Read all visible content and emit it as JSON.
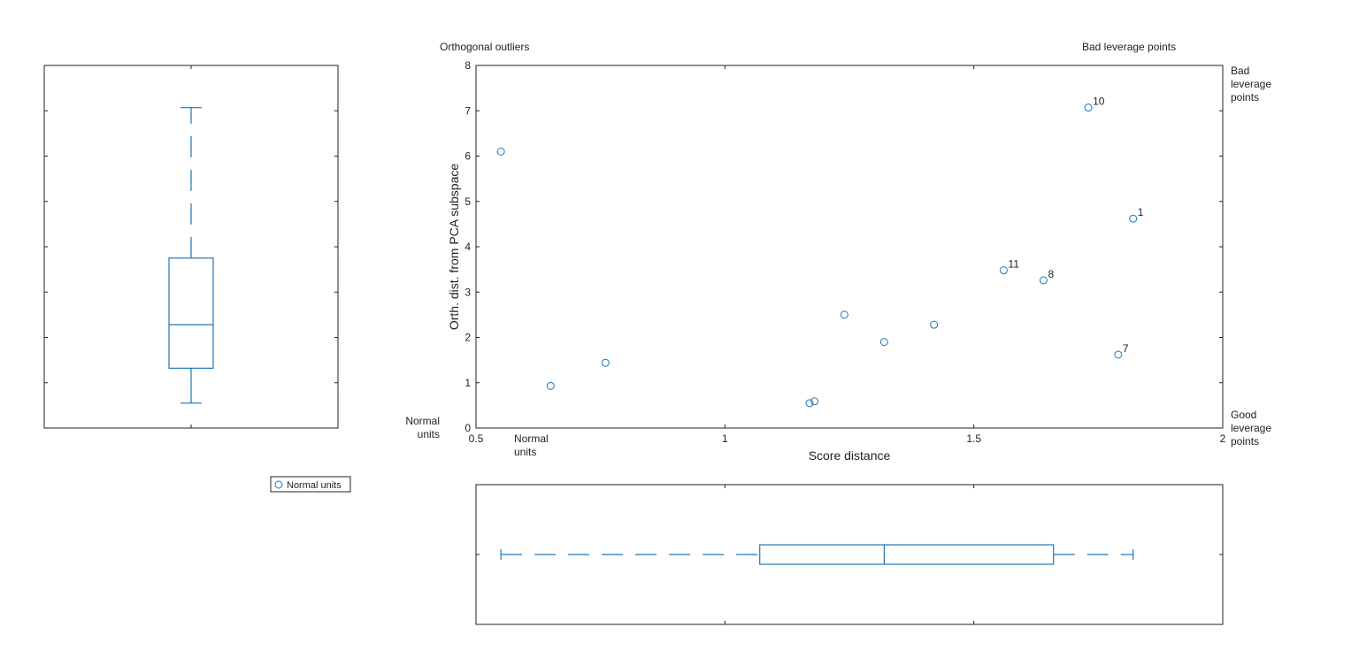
{
  "colors": {
    "marker": "#1f77b4",
    "box": "#1f77b4",
    "axis": "#222222",
    "text": "#222222"
  },
  "corner_labels": {
    "orthogonal_outliers": "Orthogonal outliers",
    "bad_leverage_top": "Bad leverage points",
    "bad_leverage_right": [
      "Bad",
      "leverage",
      "points"
    ],
    "good_leverage_right": [
      "Good",
      "leverage",
      "points"
    ],
    "normal_units_left": [
      "Normal",
      "units"
    ],
    "normal_units_bottom": [
      "Normal",
      "units"
    ]
  },
  "legend": {
    "entries": [
      "Normal units"
    ]
  },
  "chart_data": [
    {
      "type": "scatter",
      "title": "",
      "xlabel": "Score distance",
      "ylabel": "Orth. dist. from PCA subspace",
      "xlim": [
        0.5,
        2
      ],
      "ylim": [
        0,
        8
      ],
      "xticks": [
        0.5,
        1,
        1.5,
        2
      ],
      "xtick_labels": [
        "0.5",
        "1",
        "1.5",
        "2"
      ],
      "yticks": [
        0,
        1,
        2,
        3,
        4,
        5,
        6,
        7,
        8
      ],
      "ytick_labels": [
        "0",
        "1",
        "2",
        "3",
        "4",
        "5",
        "6",
        "7",
        "8"
      ],
      "grid": false,
      "legend_position": "below-left",
      "series": [
        {
          "name": "Normal units",
          "x": [
            1.82,
            0.55,
            0.65,
            0.76,
            1.17,
            1.18,
            1.24,
            1.32,
            1.42,
            1.79,
            1.56,
            1.64,
            1.73
          ],
          "y": [
            4.62,
            6.1,
            0.93,
            1.44,
            0.55,
            0.59,
            2.5,
            1.9,
            2.28,
            1.62,
            3.48,
            3.26,
            7.07
          ],
          "labels": [
            "1",
            "",
            "",
            "",
            "",
            "",
            "",
            "",
            "",
            "7",
            "11",
            "8",
            "10"
          ]
        }
      ]
    },
    {
      "type": "box",
      "orientation": "vertical",
      "variable": "Orth. dist. from PCA subspace",
      "ylim": [
        0,
        8
      ],
      "whisker_low": 0.55,
      "q1": 1.32,
      "median": 2.28,
      "q3": 3.75,
      "whisker_high": 7.07
    },
    {
      "type": "box",
      "orientation": "horizontal",
      "variable": "Score distance",
      "xlim": [
        0.5,
        2
      ],
      "whisker_low": 0.55,
      "q1": 1.07,
      "median": 1.32,
      "q3": 1.66,
      "whisker_high": 1.82
    }
  ]
}
